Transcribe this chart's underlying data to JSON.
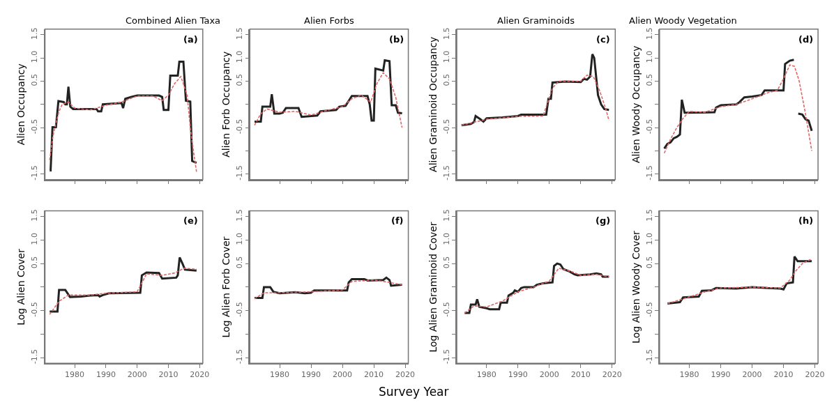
{
  "chart_data": [
    {
      "type": "line",
      "title": "Combined Alien Taxa",
      "ylabel": "Alien Occupancy",
      "annotations": [
        "(a)"
      ],
      "xlim": [
        1970.5,
        2021
      ],
      "xticks": [
        1980,
        1990,
        2000,
        2010,
        2020
      ],
      "ylim": [
        -1.62,
        1.62
      ],
      "yticks": [
        -1.5,
        {
          "value": -1,
          "label": null
        },
        -0.5,
        {
          "value": 0,
          "label": null
        },
        0.5,
        {
          "value": 1,
          "label": "1.0"
        },
        1.5
      ],
      "tick_labels": "y",
      "series": [
        {
          "color": "#222222",
          "line_style": "solid",
          "x": [
            1972,
            1972.3,
            1972.9,
            1974,
            1974.8,
            1976.5,
            1977,
            1977.5,
            1978,
            1978.6,
            1979.5,
            1987,
            1987.5,
            1988.5,
            1989,
            1995,
            1995.5,
            1996.2,
            1998,
            2000,
            2007,
            2008,
            2008.5,
            2010,
            2010.6,
            2013,
            2013.5,
            2014.8,
            2015.6,
            2017,
            2017.6,
            2019
          ],
          "values": [
            -1.42,
            -1.42,
            -0.49,
            -0.49,
            0.07,
            0.05,
            0.0,
            0.0,
            0.38,
            -0.05,
            -0.1,
            -0.1,
            -0.15,
            -0.15,
            0.0,
            0.03,
            -0.08,
            0.12,
            0.16,
            0.19,
            0.19,
            0.16,
            -0.12,
            -0.12,
            0.62,
            0.62,
            0.92,
            0.92,
            0.08,
            0.06,
            -1.22,
            -1.26
          ]
        },
        {
          "color": "#e06666",
          "line_style": "dashed",
          "x": [
            1972,
            1973,
            1974,
            1975,
            1976,
            1978,
            1980,
            1985,
            1990,
            1995,
            2000,
            2005,
            2008,
            2010,
            2012,
            2014,
            2016,
            2017,
            2018,
            2019
          ],
          "values": [
            -1.2,
            -0.7,
            -0.4,
            -0.15,
            0.0,
            0.05,
            -0.08,
            -0.12,
            -0.02,
            0.05,
            0.18,
            0.18,
            0.08,
            0.2,
            0.45,
            0.6,
            0.2,
            -0.5,
            -1.0,
            -1.45
          ]
        }
      ]
    },
    {
      "type": "line",
      "title": "Alien Forbs",
      "ylabel": "Alien Forb Occupancy",
      "annotations": [
        "(b)"
      ],
      "xlim": [
        1970.5,
        2021
      ],
      "xticks": [
        1980,
        1990,
        2000,
        2010,
        2020
      ],
      "ylim": [
        -1.62,
        1.62
      ],
      "yticks": [
        -1.5,
        {
          "value": -1,
          "label": null
        },
        -0.5,
        {
          "value": 0,
          "label": null
        },
        0.5,
        {
          "value": 1,
          "label": "1.0"
        },
        1.5
      ],
      "tick_labels": "y",
      "series": [
        {
          "color": "#222222",
          "line_style": "solid",
          "x": [
            1972,
            1974,
            1974.5,
            1977,
            1977.5,
            1978.3,
            1980,
            1981,
            1982,
            1986,
            1987,
            1992,
            1993,
            1998,
            1999,
            2001,
            2003,
            2008,
            2008.7,
            2009.3,
            2010,
            2010.5,
            2013,
            2013.5,
            2015,
            2015.7,
            2017,
            2017.7,
            2019
          ],
          "values": [
            -0.37,
            -0.37,
            -0.05,
            -0.05,
            0.22,
            -0.2,
            -0.2,
            -0.18,
            -0.08,
            -0.08,
            -0.27,
            -0.24,
            -0.15,
            -0.12,
            -0.05,
            -0.03,
            0.18,
            0.18,
            0.0,
            -0.35,
            -0.35,
            0.77,
            0.73,
            0.95,
            0.93,
            -0.02,
            -0.02,
            -0.18,
            -0.19
          ]
        },
        {
          "color": "#e06666",
          "line_style": "dashed",
          "x": [
            1972,
            1974,
            1976,
            1980,
            1985,
            1990,
            1995,
            2000,
            2003,
            2006,
            2009,
            2011,
            2013,
            2015,
            2017,
            2019
          ],
          "values": [
            -0.45,
            -0.2,
            -0.1,
            -0.17,
            -0.15,
            -0.23,
            -0.13,
            -0.05,
            0.12,
            0.2,
            0.05,
            0.45,
            0.68,
            0.55,
            0.15,
            -0.5
          ]
        }
      ]
    },
    {
      "type": "line",
      "title": "Alien Graminoids",
      "ylabel": "Alien Graminoid Occupancy",
      "annotations": [
        "(c)"
      ],
      "xlim": [
        1970.5,
        2021
      ],
      "xticks": [
        1980,
        1990,
        2000,
        2010,
        2020
      ],
      "ylim": [
        -1.62,
        1.62
      ],
      "yticks": [
        -1.5,
        {
          "value": -1,
          "label": null
        },
        -0.5,
        {
          "value": 0,
          "label": null
        },
        0.5,
        {
          "value": 1,
          "label": "1.0"
        },
        1.5
      ],
      "tick_labels": "y",
      "series": [
        {
          "color": "#222222",
          "line_style": "solid",
          "x": [
            1972,
            1975,
            1976,
            1976.5,
            1978,
            1979,
            1980,
            1985,
            1990,
            1991,
            1999,
            1999.7,
            2000.5,
            2001,
            2005,
            2010,
            2011,
            2012,
            2013,
            2013.7,
            2014.3,
            2015.5,
            2016.5,
            2017.5,
            2019
          ],
          "values": [
            -0.45,
            -0.42,
            -0.38,
            -0.25,
            -0.32,
            -0.37,
            -0.3,
            -0.28,
            -0.25,
            -0.22,
            -0.22,
            0.12,
            0.12,
            0.47,
            0.49,
            0.48,
            0.55,
            0.53,
            0.6,
            1.08,
            1.0,
            0.2,
            0.0,
            -0.1,
            -0.12
          ]
        },
        {
          "color": "#e06666",
          "line_style": "dashed",
          "x": [
            1972,
            1980,
            1990,
            1998,
            1999,
            2001,
            2003,
            2010,
            2012,
            2014,
            2016,
            2018,
            2019
          ],
          "values": [
            -0.45,
            -0.32,
            -0.26,
            -0.25,
            -0.05,
            0.35,
            0.5,
            0.5,
            0.63,
            0.6,
            0.3,
            -0.1,
            -0.35
          ]
        }
      ]
    },
    {
      "type": "line",
      "title": "Alien Woody Vegetation",
      "ylabel": "Alien Woody Occupancy",
      "annotations": [
        "(d)"
      ],
      "xlim": [
        1970.5,
        2021
      ],
      "xticks": [
        1980,
        1990,
        2000,
        2010,
        2020
      ],
      "ylim": [
        -1.62,
        1.62
      ],
      "yticks": [
        -1.5,
        {
          "value": -1,
          "label": null
        },
        -0.5,
        {
          "value": 0,
          "label": null
        },
        0.5,
        {
          "value": 1,
          "label": "1.0"
        },
        1.5
      ],
      "tick_labels": "y",
      "series": [
        {
          "color": "#222222",
          "line_style": "solid",
          "x": [
            1972,
            1973,
            1974,
            1975,
            1976,
            1977,
            1977.6,
            1978.5,
            1988,
            1988.5,
            1990,
            1995,
            1996,
            1997.5,
            2000,
            2003,
            2004,
            2010,
            2010.5,
            2012,
            2013.3,
            2013.6,
            2014.3,
            2014.7,
            2016,
            2017,
            2018,
            2019
          ],
          "values": [
            -0.95,
            -0.85,
            -0.82,
            -0.73,
            -0.7,
            -0.65,
            0.1,
            -0.18,
            -0.17,
            -0.07,
            -0.02,
            0.0,
            0.05,
            0.15,
            0.17,
            0.2,
            0.3,
            0.3,
            0.87,
            0.94,
            0.96,
            null,
            null,
            -0.2,
            -0.22,
            -0.32,
            -0.35,
            -0.57
          ]
        },
        {
          "color": "#e06666",
          "line_style": "dashed",
          "x": [
            1972,
            1974,
            1976,
            1978,
            1980,
            1985,
            1990,
            1995,
            2000,
            2005,
            2008,
            2010,
            2012,
            2013.5,
            2015,
            2017,
            2019
          ],
          "values": [
            -1.05,
            -0.75,
            -0.5,
            -0.3,
            -0.15,
            -0.17,
            -0.05,
            0.0,
            0.12,
            0.25,
            0.3,
            0.55,
            0.85,
            0.82,
            0.5,
            -0.2,
            -1.0
          ]
        }
      ]
    },
    {
      "type": "line",
      "ylabel": "Log Alien Cover",
      "annotations": [
        "(e)"
      ],
      "xlim": [
        1970.5,
        2021
      ],
      "xticks": [
        1980,
        1990,
        2000,
        2010,
        2020
      ],
      "ylim": [
        -1.62,
        1.62
      ],
      "yticks": [
        -1.5,
        {
          "value": -1,
          "label": null
        },
        -0.5,
        {
          "value": 0,
          "label": null
        },
        0.5,
        {
          "value": 1,
          "label": "1.0"
        },
        1.5
      ],
      "series": [
        {
          "color": "#222222",
          "line_style": "solid",
          "x": [
            1972,
            1974.5,
            1975,
            1977,
            1978.5,
            1982,
            1985,
            1987.5,
            1988,
            1989,
            1991,
            2001,
            2001.5,
            2003,
            2007,
            2008,
            2012.5,
            2013,
            2013.6,
            2014.5,
            2015.3,
            2019
          ],
          "values": [
            -0.52,
            -0.52,
            -0.06,
            -0.06,
            -0.21,
            -0.2,
            -0.18,
            -0.17,
            -0.2,
            -0.17,
            -0.13,
            -0.12,
            0.25,
            0.31,
            0.3,
            0.18,
            0.2,
            0.25,
            0.63,
            0.5,
            0.37,
            0.35
          ]
        },
        {
          "color": "#e06666",
          "line_style": "dashed",
          "x": [
            1972,
            1975,
            1978,
            1985,
            1990,
            2000,
            2003,
            2008,
            2012,
            2015,
            2019
          ],
          "values": [
            -0.58,
            -0.3,
            -0.17,
            -0.17,
            -0.13,
            -0.1,
            0.28,
            0.25,
            0.3,
            0.4,
            0.38
          ]
        }
      ]
    },
    {
      "type": "line",
      "ylabel": "Log Alien Forb Cover",
      "xlabel": "Survey Year",
      "annotations": [
        "(f)"
      ],
      "xlim": [
        1970.5,
        2021
      ],
      "xticks": [
        1980,
        1990,
        2000,
        2010,
        2020
      ],
      "ylim": [
        -1.62,
        1.62
      ],
      "yticks": [
        -1.5,
        {
          "value": -1,
          "label": null
        },
        -0.5,
        {
          "value": 0,
          "label": null
        },
        0.5,
        {
          "value": 1,
          "label": "1.0"
        },
        1.5
      ],
      "series": [
        {
          "color": "#222222",
          "line_style": "solid",
          "x": [
            1972,
            1974.5,
            1975,
            1977,
            1978,
            1980,
            1985,
            1988,
            1990,
            1991,
            2001.5,
            2002,
            2003,
            2007,
            2008,
            2013,
            2014,
            2015,
            2015.5,
            2019
          ],
          "values": [
            -0.23,
            -0.23,
            0.0,
            0.0,
            -0.1,
            -0.13,
            -0.11,
            -0.13,
            -0.12,
            -0.07,
            -0.07,
            0.1,
            0.17,
            0.17,
            0.14,
            0.15,
            0.2,
            0.15,
            0.03,
            0.05
          ]
        },
        {
          "color": "#e06666",
          "line_style": "dashed",
          "x": [
            1972,
            1975,
            1980,
            1990,
            2000,
            2003,
            2010,
            2015,
            2019
          ],
          "values": [
            -0.25,
            -0.12,
            -0.12,
            -0.1,
            -0.06,
            0.12,
            0.15,
            0.1,
            0.05
          ]
        }
      ]
    },
    {
      "type": "line",
      "ylabel": "Log Alien Graminoid Cover",
      "annotations": [
        "(g)"
      ],
      "xlim": [
        1970.5,
        2021
      ],
      "xticks": [
        1980,
        1990,
        2000,
        2010,
        2020
      ],
      "ylim": [
        -1.62,
        1.62
      ],
      "yticks": [
        -1.5,
        {
          "value": -1,
          "label": null
        },
        -0.5,
        {
          "value": 0,
          "label": null
        },
        0.5,
        {
          "value": 1,
          "label": "1.0"
        },
        1.5
      ],
      "series": [
        {
          "color": "#222222",
          "line_style": "solid",
          "x": [
            1973,
            1974.5,
            1975,
            1976.5,
            1977,
            1977.7,
            1980,
            1981,
            1984,
            1984.5,
            1986.5,
            1987,
            1988.5,
            1989,
            1990,
            1991,
            1992,
            1995,
            1996,
            1998,
            2001,
            2001.5,
            2002.5,
            2003.5,
            2004.5,
            2006.5,
            2008,
            2009,
            2013,
            2015,
            2016.5,
            2017,
            2019
          ],
          "values": [
            -0.55,
            -0.55,
            -0.37,
            -0.37,
            -0.26,
            -0.42,
            -0.45,
            -0.47,
            -0.47,
            -0.33,
            -0.33,
            -0.18,
            -0.12,
            -0.07,
            -0.1,
            -0.02,
            0.0,
            0.0,
            0.05,
            0.08,
            0.1,
            0.45,
            0.5,
            0.48,
            0.38,
            0.33,
            0.27,
            0.25,
            0.27,
            0.29,
            0.27,
            0.22,
            0.22
          ]
        },
        {
          "color": "#e06666",
          "line_style": "dashed",
          "x": [
            1973,
            1976,
            1980,
            1985,
            1990,
            1995,
            2000,
            2003,
            2007,
            2010,
            2015,
            2019
          ],
          "values": [
            -0.55,
            -0.4,
            -0.42,
            -0.3,
            -0.1,
            0.0,
            0.13,
            0.4,
            0.33,
            0.25,
            0.27,
            0.22
          ]
        }
      ]
    },
    {
      "type": "line",
      "ylabel": "Log Alien Woody Cover",
      "annotations": [
        "(h)"
      ],
      "xlim": [
        1970.5,
        2021
      ],
      "xticks": [
        1980,
        1990,
        2000,
        2010,
        2020
      ],
      "ylim": [
        -1.62,
        1.62
      ],
      "yticks": [
        -1.5,
        {
          "value": -1,
          "label": null
        },
        -0.5,
        {
          "value": 0,
          "label": null
        },
        0.5,
        {
          "value": 1,
          "label": "1.0"
        },
        1.5
      ],
      "series": [
        {
          "color": "#222222",
          "line_style": "solid",
          "x": [
            1973,
            1977,
            1978,
            1983,
            1984,
            1987,
            1988.5,
            1995,
            2000,
            2005,
            2009,
            2010,
            2011,
            2013,
            2013.5,
            2014.5,
            2019
          ],
          "values": [
            -0.35,
            -0.32,
            -0.22,
            -0.2,
            -0.08,
            -0.07,
            -0.02,
            -0.03,
            0.0,
            -0.02,
            -0.03,
            -0.05,
            0.08,
            0.1,
            0.65,
            0.55,
            0.55
          ]
        },
        {
          "color": "#e06666",
          "line_style": "dashed",
          "x": [
            1973,
            1978,
            1985,
            1990,
            2000,
            2009,
            2012,
            2014,
            2016,
            2019
          ],
          "values": [
            -0.35,
            -0.25,
            -0.1,
            -0.02,
            0.0,
            -0.02,
            0.15,
            0.35,
            0.5,
            0.6
          ]
        }
      ]
    }
  ]
}
